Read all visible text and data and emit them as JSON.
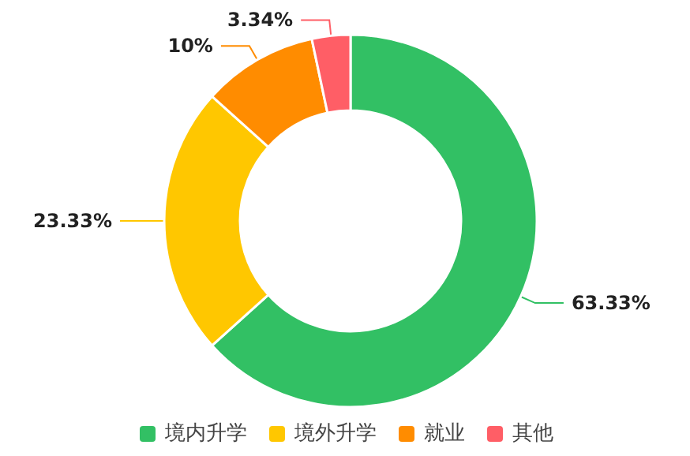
{
  "chart_data": {
    "type": "donut",
    "categories": [
      "境内升学",
      "境外升学",
      "就业",
      "其他"
    ],
    "values": [
      63.33,
      23.33,
      10,
      3.34
    ],
    "value_labels": [
      "63.33%",
      "23.33%",
      "10%",
      "3.34%"
    ],
    "colors": [
      "#32c064",
      "#ffc700",
      "#ff8c00",
      "#ff5e66"
    ],
    "legend": "bottom"
  }
}
